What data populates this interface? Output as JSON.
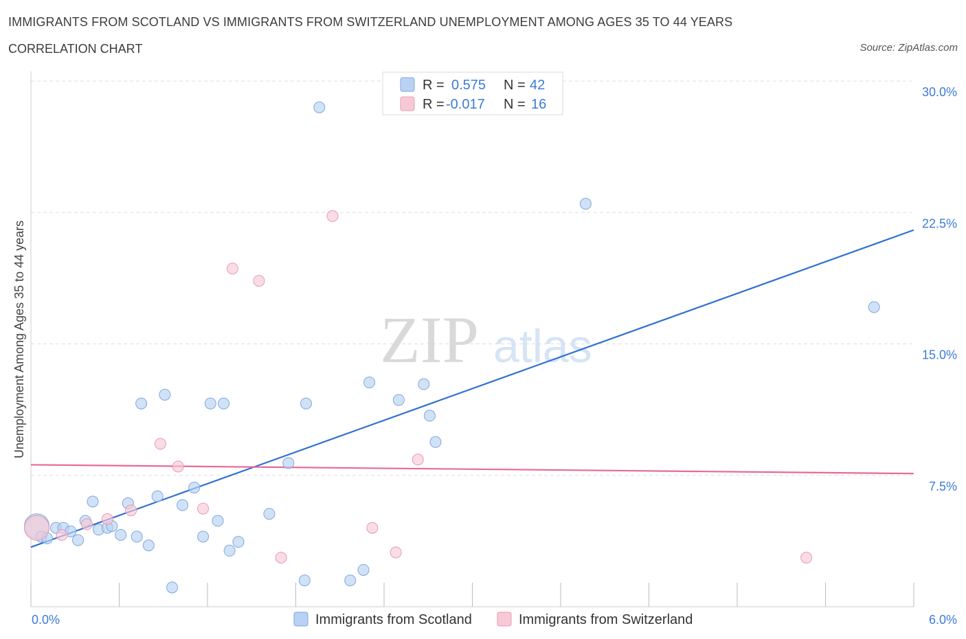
{
  "header": {
    "title": "IMMIGRANTS FROM SCOTLAND VS IMMIGRANTS FROM SWITZERLAND UNEMPLOYMENT AMONG AGES 35 TO 44 YEARS",
    "subtitle": "CORRELATION CHART",
    "source": "Source: ZipAtlas.com"
  },
  "watermark": {
    "zip": "ZIP",
    "atlas": "atlas"
  },
  "colors": {
    "scotland_fill": "#b9d2f3",
    "scotland_stroke": "#7ea7df",
    "scotland_line": "#2f6fd0",
    "switzerland_fill": "#f7c9d6",
    "switzerland_stroke": "#e89ab2",
    "switzerland_line": "#e8689a",
    "tick_text": "#3d7ad6",
    "grid": "#dddddd"
  },
  "legend": {
    "r_label": "R =",
    "n_label": "N =",
    "rows": [
      {
        "r": "0.575",
        "n": "42"
      },
      {
        "r": "-0.017",
        "n": "16"
      }
    ]
  },
  "chart_data": {
    "type": "scatter",
    "title": "IMMIGRANTS FROM SCOTLAND VS IMMIGRANTS FROM SWITZERLAND UNEMPLOYMENT AMONG AGES 35 TO 44 YEARS",
    "xlabel": "",
    "ylabel": "Unemployment Among Ages 35 to 44 years",
    "xlim": [
      0,
      6
    ],
    "ylim": [
      0,
      30
    ],
    "x_tick_labels": [
      "0.0%",
      "6.0%"
    ],
    "y_ticks": [
      7.5,
      15,
      22.5,
      30
    ],
    "y_tick_labels": [
      "7.5%",
      "15.0%",
      "22.5%",
      "30.0%"
    ],
    "grid": true,
    "series": [
      {
        "name": "Immigrants from Scotland",
        "trend": {
          "x": [
            0,
            6
          ],
          "y": [
            3.4,
            21.5
          ]
        },
        "points": [
          {
            "x": 0.04,
            "y": 4.6,
            "big": true
          },
          {
            "x": 0.07,
            "y": 4.0
          },
          {
            "x": 0.11,
            "y": 3.9
          },
          {
            "x": 0.17,
            "y": 4.5
          },
          {
            "x": 0.22,
            "y": 4.5
          },
          {
            "x": 0.27,
            "y": 4.3
          },
          {
            "x": 0.32,
            "y": 3.8
          },
          {
            "x": 0.37,
            "y": 4.9
          },
          {
            "x": 0.42,
            "y": 6.0
          },
          {
            "x": 0.46,
            "y": 4.4
          },
          {
            "x": 0.52,
            "y": 4.5
          },
          {
            "x": 0.55,
            "y": 4.6
          },
          {
            "x": 0.61,
            "y": 4.1
          },
          {
            "x": 0.66,
            "y": 5.9
          },
          {
            "x": 0.72,
            "y": 4.0
          },
          {
            "x": 0.75,
            "y": 11.6
          },
          {
            "x": 0.8,
            "y": 3.5
          },
          {
            "x": 0.86,
            "y": 6.3
          },
          {
            "x": 0.91,
            "y": 12.1
          },
          {
            "x": 0.96,
            "y": 1.1
          },
          {
            "x": 1.03,
            "y": 5.8
          },
          {
            "x": 1.11,
            "y": 6.8
          },
          {
            "x": 1.17,
            "y": 4.0
          },
          {
            "x": 1.22,
            "y": 11.6
          },
          {
            "x": 1.27,
            "y": 4.9
          },
          {
            "x": 1.31,
            "y": 11.6
          },
          {
            "x": 1.35,
            "y": 3.2
          },
          {
            "x": 1.41,
            "y": 3.7
          },
          {
            "x": 1.62,
            "y": 5.3
          },
          {
            "x": 1.75,
            "y": 8.2
          },
          {
            "x": 1.86,
            "y": 1.5
          },
          {
            "x": 1.87,
            "y": 11.6
          },
          {
            "x": 1.96,
            "y": 28.5
          },
          {
            "x": 2.17,
            "y": 1.5
          },
          {
            "x": 2.26,
            "y": 2.1
          },
          {
            "x": 2.3,
            "y": 12.8
          },
          {
            "x": 2.5,
            "y": 11.8
          },
          {
            "x": 2.67,
            "y": 12.7
          },
          {
            "x": 2.71,
            "y": 10.9
          },
          {
            "x": 2.75,
            "y": 9.4
          },
          {
            "x": 3.77,
            "y": 23.0
          },
          {
            "x": 5.73,
            "y": 17.1
          }
        ]
      },
      {
        "name": "Immigrants from Switzerland",
        "trend": {
          "x": [
            0,
            6
          ],
          "y": [
            8.1,
            7.6
          ]
        },
        "points": [
          {
            "x": 0.04,
            "y": 4.5,
            "big": true
          },
          {
            "x": 0.21,
            "y": 4.1
          },
          {
            "x": 0.38,
            "y": 4.7
          },
          {
            "x": 0.52,
            "y": 5.0
          },
          {
            "x": 0.68,
            "y": 5.5
          },
          {
            "x": 0.88,
            "y": 9.3
          },
          {
            "x": 1.0,
            "y": 8.0
          },
          {
            "x": 1.17,
            "y": 5.6
          },
          {
            "x": 1.37,
            "y": 19.3
          },
          {
            "x": 1.55,
            "y": 18.6
          },
          {
            "x": 1.7,
            "y": 2.8
          },
          {
            "x": 2.05,
            "y": 22.3
          },
          {
            "x": 2.32,
            "y": 4.5
          },
          {
            "x": 2.48,
            "y": 3.1
          },
          {
            "x": 2.63,
            "y": 8.4
          },
          {
            "x": 5.27,
            "y": 2.8
          }
        ]
      }
    ]
  }
}
